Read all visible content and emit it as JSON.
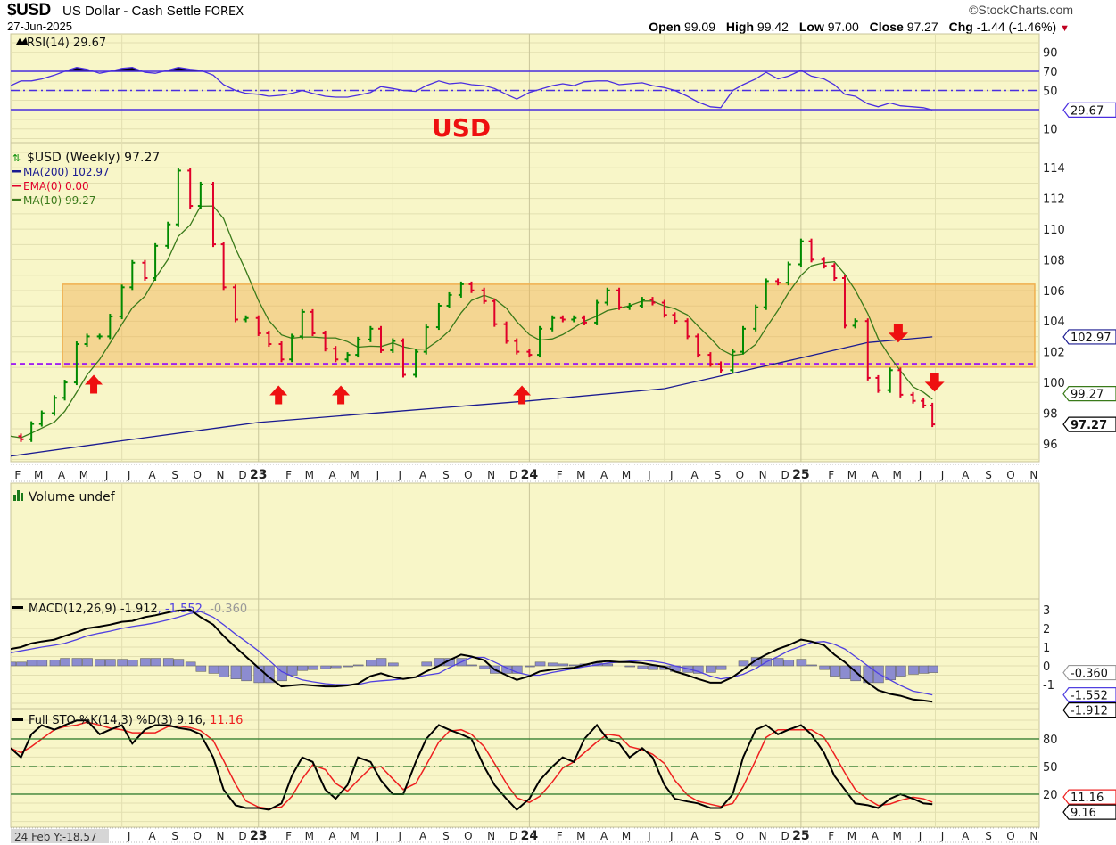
{
  "header": {
    "symbol": "$USD",
    "name": "US Dollar - Cash Settle",
    "exchange": "FOREX",
    "date": "27-Jun-2025",
    "brand": "©StockCharts.com",
    "open_label": "Open",
    "open": "99.09",
    "high_label": "High",
    "high": "99.42",
    "low_label": "Low",
    "low": "97.00",
    "close_label": "Close",
    "close": "97.27",
    "chg_label": "Chg",
    "chg": "-1.44 (-1.46%)",
    "chg_direction": "down"
  },
  "annotation_text": "USD",
  "cursor_readout": "24 Feb Y:-18.57",
  "colors": {
    "background": "#f8f6c8",
    "grid": "#e2dfb0",
    "up_bar": "#008a00",
    "down_bar": "#e0002a",
    "ma200": "#1a1a90",
    "ma10": "#3a7a1a",
    "rsi": "#4a2ee0",
    "support_line": "#a020f0",
    "range_box": "#f0b050",
    "arrow": "#ee1010",
    "annotation": "#ee1010",
    "sto_k": "#000000",
    "sto_d": "#ee2020",
    "macd": "#000000",
    "signal": "#5040e0",
    "histogram": "#8c8cd0"
  },
  "chart_data": {
    "type": "ohlc-weekly-with-indicators",
    "time_axis": {
      "months": [
        "F",
        "M",
        "A",
        "M",
        "J",
        "J",
        "A",
        "S",
        "O",
        "N",
        "D",
        "23",
        "F",
        "M",
        "A",
        "M",
        "J",
        "J",
        "A",
        "S",
        "O",
        "N",
        "D",
        "24",
        "F",
        "M",
        "A",
        "M",
        "J",
        "J",
        "A",
        "S",
        "O",
        "N",
        "D",
        "25",
        "F",
        "M",
        "A",
        "M",
        "J",
        "J",
        "A",
        "S",
        "O",
        "N"
      ],
      "first_month": "2022-02"
    },
    "dates": [
      "2022-02-01",
      "2022-02-15",
      "2022-03-01",
      "2022-03-15",
      "2022-04-01",
      "2022-04-15",
      "2022-05-01",
      "2022-05-15",
      "2022-06-01",
      "2022-06-15",
      "2022-07-01",
      "2022-07-15",
      "2022-08-01",
      "2022-08-15",
      "2022-09-01",
      "2022-09-15",
      "2022-10-01",
      "2022-10-15",
      "2022-11-01",
      "2022-11-15",
      "2022-12-01",
      "2022-12-15",
      "2023-01-01",
      "2023-01-15",
      "2023-02-01",
      "2023-02-15",
      "2023-03-01",
      "2023-03-15",
      "2023-04-01",
      "2023-04-15",
      "2023-05-01",
      "2023-05-15",
      "2023-06-01",
      "2023-06-15",
      "2023-07-01",
      "2023-07-15",
      "2023-08-01",
      "2023-08-15",
      "2023-09-01",
      "2023-09-15",
      "2023-10-01",
      "2023-10-15",
      "2023-11-01",
      "2023-11-15",
      "2023-12-01",
      "2023-12-15",
      "2024-01-01",
      "2024-01-15",
      "2024-02-01",
      "2024-02-15",
      "2024-03-01",
      "2024-03-15",
      "2024-04-01",
      "2024-04-15",
      "2024-05-01",
      "2024-05-15",
      "2024-06-01",
      "2024-06-15",
      "2024-07-01",
      "2024-07-15",
      "2024-08-01",
      "2024-08-15",
      "2024-09-01",
      "2024-09-15",
      "2024-10-01",
      "2024-10-15",
      "2024-11-01",
      "2024-11-15",
      "2024-12-01",
      "2024-12-15",
      "2025-01-01",
      "2025-01-15",
      "2025-02-01",
      "2025-02-15",
      "2025-03-01",
      "2025-03-15",
      "2025-04-01",
      "2025-04-15",
      "2025-05-01",
      "2025-05-15",
      "2025-06-01",
      "2025-06-15",
      "2025-06-27"
    ],
    "price": {
      "legend": "$USD (Weekly) 97.27",
      "yticks": [
        96,
        98,
        100,
        102,
        104,
        106,
        108,
        110,
        112,
        114
      ],
      "ylim": [
        95,
        115
      ],
      "close": [
        96.5,
        96.3,
        97.3,
        98,
        99,
        100,
        102.5,
        103,
        103,
        104.3,
        106.2,
        107.8,
        106.8,
        108.9,
        110.3,
        113.8,
        111.5,
        112.9,
        109,
        106.2,
        104.1,
        104.2,
        103.2,
        102.5,
        101.5,
        103,
        104.6,
        103.2,
        102.2,
        101.5,
        101.8,
        102.8,
        103.5,
        102.1,
        102.7,
        100.5,
        102,
        103.6,
        105,
        105.7,
        106.4,
        106,
        105.3,
        103.8,
        102.7,
        102,
        101.8,
        103.5,
        104.2,
        104.1,
        104.2,
        103.9,
        105.2,
        106,
        104.9,
        105,
        105.4,
        105.2,
        104.4,
        104,
        103,
        101.8,
        101.2,
        100.8,
        102,
        103.5,
        104.9,
        106.6,
        106.5,
        107.7,
        109.2,
        108,
        107.6,
        106.8,
        103.7,
        104,
        100.3,
        99.5,
        100.8,
        99.2,
        98.8,
        98.5,
        97.27
      ],
      "ma200": {
        "legend": "MA(200) 102.97",
        "last": "102.97",
        "points": [
          [
            "2022-02-01",
            95.2
          ],
          [
            "2022-07-01",
            96.2
          ],
          [
            "2023-01-01",
            97.4
          ],
          [
            "2023-07-01",
            98.1
          ],
          [
            "2024-01-01",
            98.8
          ],
          [
            "2024-07-01",
            99.6
          ],
          [
            "2024-10-01",
            100.6
          ],
          [
            "2025-01-01",
            101.6
          ],
          [
            "2025-04-01",
            102.6
          ],
          [
            "2025-06-27",
            102.97
          ]
        ]
      },
      "ema0": {
        "legend": "EMA(0) 0.00"
      },
      "ma10": {
        "legend": "MA(10) 99.27",
        "last": "99.27"
      },
      "last_close": "97.27",
      "support_level": 101.2,
      "range_box": {
        "from": "2022-04-12",
        "to": "2025-11-12",
        "low": 101.0,
        "high": 106.4
      },
      "arrows": [
        {
          "date": "2022-05-24",
          "price": 100.5,
          "dir": "up"
        },
        {
          "date": "2023-01-28",
          "price": 99.8,
          "dir": "up"
        },
        {
          "date": "2023-04-22",
          "price": 99.8,
          "dir": "up"
        },
        {
          "date": "2023-12-22",
          "price": 99.8,
          "dir": "up"
        },
        {
          "date": "2025-05-12",
          "price": 102.6,
          "dir": "down"
        },
        {
          "date": "2025-06-30",
          "price": 99.4,
          "dir": "down"
        }
      ]
    },
    "rsi": {
      "legend": "RSI(14) 29.67",
      "last": "29.67",
      "yticks": [
        10,
        50,
        70,
        90
      ],
      "levels": [
        30,
        50,
        70
      ],
      "values": [
        55,
        60,
        60,
        62,
        66,
        70,
        74,
        72,
        68,
        70,
        73,
        74,
        69,
        68,
        71,
        74,
        72,
        71,
        66,
        56,
        50,
        47,
        46,
        44,
        45,
        47,
        50,
        47,
        44,
        43,
        43,
        45,
        48,
        54,
        52,
        50,
        49,
        55,
        60,
        57,
        58,
        56,
        55,
        52,
        46,
        41,
        48,
        51,
        55,
        57,
        55,
        59,
        60,
        60,
        56,
        57,
        58,
        55,
        53,
        50,
        44,
        38,
        33,
        32,
        50,
        56,
        62,
        69,
        62,
        65,
        71,
        65,
        62,
        56,
        46,
        44,
        36,
        33,
        37,
        34,
        33,
        32,
        29.67
      ]
    },
    "volume": {
      "legend": "Volume undef"
    },
    "macd": {
      "legend_prefix": "MACD(12,26,9)",
      "macd_last": "-1.912",
      "signal_last": "-1.552",
      "hist_last": "-0.360",
      "yticks": [
        3,
        2,
        1,
        0,
        -1
      ],
      "macd": [
        0.9,
        1.0,
        1.2,
        1.3,
        1.4,
        1.6,
        1.8,
        2.0,
        2.1,
        2.2,
        2.35,
        2.4,
        2.6,
        2.7,
        2.85,
        2.95,
        3.0,
        2.6,
        2.2,
        1.6,
        1.0,
        0.5,
        -0.1,
        -0.6,
        -1.1,
        -1.05,
        -1.0,
        -1.05,
        -1.1,
        -1.1,
        -1.05,
        -0.95,
        -0.55,
        -0.4,
        -0.6,
        -0.7,
        -0.6,
        -0.3,
        0.0,
        0.3,
        0.6,
        0.5,
        0.3,
        -0.2,
        -0.5,
        -0.75,
        -0.55,
        -0.3,
        -0.2,
        -0.15,
        -0.1,
        0.05,
        0.2,
        0.25,
        0.2,
        0.2,
        0.15,
        0.05,
        -0.05,
        -0.3,
        -0.5,
        -0.7,
        -0.9,
        -0.9,
        -0.6,
        -0.2,
        0.3,
        0.6,
        0.9,
        1.1,
        1.4,
        1.3,
        1.1,
        0.6,
        0.2,
        -0.3,
        -0.9,
        -1.3,
        -1.5,
        -1.6,
        -1.8,
        -1.85,
        -1.912
      ],
      "signal": [
        0.7,
        0.8,
        0.9,
        1.0,
        1.1,
        1.2,
        1.4,
        1.6,
        1.75,
        1.85,
        2.0,
        2.1,
        2.2,
        2.3,
        2.45,
        2.6,
        2.8,
        2.9,
        2.6,
        2.2,
        1.7,
        1.3,
        0.8,
        0.3,
        -0.3,
        -0.55,
        -0.75,
        -0.85,
        -0.95,
        -1.0,
        -1.0,
        -1.0,
        -0.85,
        -0.8,
        -0.75,
        -0.7,
        -0.6,
        -0.5,
        -0.4,
        -0.1,
        0.2,
        0.45,
        0.45,
        0.2,
        -0.1,
        -0.35,
        -0.5,
        -0.5,
        -0.35,
        -0.25,
        -0.15,
        -0.05,
        0.05,
        0.15,
        0.2,
        0.25,
        0.3,
        0.25,
        0.15,
        0.0,
        -0.15,
        -0.3,
        -0.55,
        -0.7,
        -0.6,
        -0.45,
        -0.15,
        0.2,
        0.5,
        0.8,
        1.05,
        1.25,
        1.3,
        1.15,
        0.9,
        0.5,
        0.0,
        -0.4,
        -0.75,
        -1.05,
        -1.35,
        -1.45,
        -1.552
      ]
    },
    "stochastic": {
      "legend_prefix": "Full STO %K(14,3) %D(3)",
      "k_last": "9.16",
      "d_last": "11.16",
      "yticks": [
        20,
        50,
        80
      ],
      "levels": [
        20,
        50,
        80
      ],
      "k": [
        70,
        60,
        85,
        95,
        90,
        95,
        100,
        100,
        85,
        90,
        95,
        75,
        90,
        95,
        95,
        92,
        90,
        85,
        60,
        25,
        8,
        5,
        5,
        3,
        10,
        40,
        60,
        55,
        25,
        15,
        30,
        60,
        55,
        35,
        20,
        20,
        55,
        80,
        95,
        90,
        85,
        80,
        50,
        30,
        15,
        3,
        15,
        35,
        50,
        60,
        55,
        80,
        95,
        80,
        75,
        60,
        70,
        60,
        30,
        15,
        12,
        10,
        5,
        5,
        20,
        60,
        90,
        95,
        85,
        90,
        95,
        85,
        65,
        40,
        25,
        10,
        8,
        5,
        15,
        20,
        15,
        10,
        9.16
      ]
    }
  }
}
